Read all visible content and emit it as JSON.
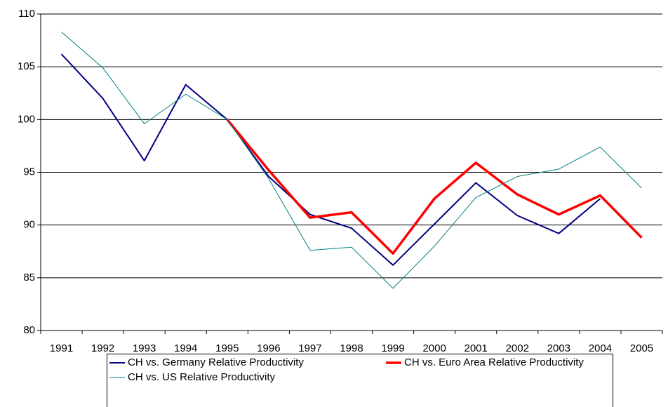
{
  "chart_data": {
    "type": "line",
    "categories": [
      "1991",
      "1992",
      "1993",
      "1994",
      "1995",
      "1996",
      "1997",
      "1998",
      "1999",
      "2000",
      "2001",
      "2002",
      "2003",
      "2004",
      "2005"
    ],
    "ylim": [
      80,
      110
    ],
    "yticks": [
      80,
      85,
      90,
      95,
      100,
      105,
      110
    ],
    "grid": true,
    "legend": "bottom",
    "series": [
      {
        "name": "CH vs. Germany Relative Productivity",
        "color": "#000080",
        "width": 2,
        "values": [
          106.2,
          102.0,
          96.1,
          103.3,
          100.0,
          94.6,
          91.0,
          89.7,
          86.2,
          90.1,
          94.0,
          90.9,
          89.2,
          92.5,
          null
        ]
      },
      {
        "name": "CH vs. Euro Area Relative Productivity",
        "color": "#ff0000",
        "width": 3.5,
        "values": [
          null,
          null,
          null,
          null,
          100.0,
          95.2,
          90.7,
          91.2,
          87.3,
          92.5,
          95.9,
          92.9,
          91.0,
          92.8,
          88.8
        ]
      },
      {
        "name": "CH vs. US Relative Productivity",
        "color": "#008080",
        "width": 1,
        "values": [
          108.3,
          104.9,
          99.6,
          102.4,
          100.0,
          94.4,
          87.6,
          87.9,
          84.0,
          88.0,
          92.6,
          94.6,
          95.3,
          97.4,
          93.5
        ]
      }
    ]
  }
}
